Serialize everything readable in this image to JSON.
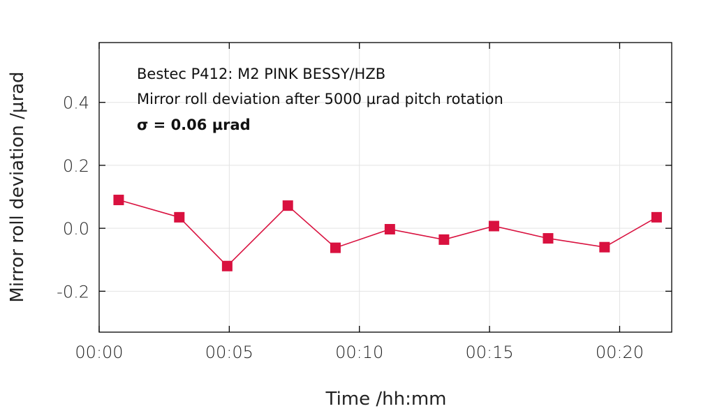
{
  "chart_data": {
    "type": "line",
    "xlabel": "Time /hh:mm",
    "ylabel": "Mirror roll deviation /µrad",
    "x_unit": "minutes",
    "xlim": [
      0,
      22
    ],
    "ylim": [
      -0.33,
      0.59
    ],
    "x_ticks": [
      {
        "value": 0,
        "label": "00:00"
      },
      {
        "value": 5,
        "label": "00:05"
      },
      {
        "value": 10,
        "label": "00:10"
      },
      {
        "value": 15,
        "label": "00:15"
      },
      {
        "value": 20,
        "label": "00:20"
      }
    ],
    "y_ticks": [
      {
        "value": -0.2,
        "label": "-0.2"
      },
      {
        "value": 0.0,
        "label": "0.0"
      },
      {
        "value": 0.2,
        "label": "0.2"
      },
      {
        "value": 0.4,
        "label": "0.4"
      }
    ],
    "grid": true,
    "annotations": [
      "Bestec P412: M2 PINK BESSY/HZB",
      "Mirror roll deviation after 5000 µrad pitch rotation",
      "σ = 0.06 µrad"
    ],
    "series": [
      {
        "color": "#d9113f",
        "marker": "square",
        "x": [
          0.75,
          3.08,
          4.92,
          7.25,
          9.08,
          11.17,
          13.25,
          15.17,
          17.25,
          19.42,
          21.42
        ],
        "y": [
          0.09,
          0.035,
          -0.12,
          0.072,
          -0.062,
          -0.003,
          -0.036,
          0.007,
          -0.032,
          -0.06,
          0.035
        ]
      }
    ]
  }
}
